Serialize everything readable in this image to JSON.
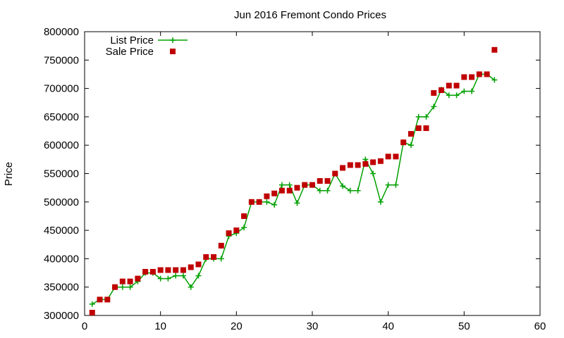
{
  "chart_data": {
    "type": "line",
    "title": "Jun 2016 Fremont Condo Prices",
    "xlabel": "",
    "ylabel": "Price",
    "xlim": [
      0,
      60
    ],
    "ylim": [
      300000,
      800000
    ],
    "x_ticks": [
      0,
      10,
      20,
      30,
      40,
      50,
      60
    ],
    "y_ticks": [
      300000,
      350000,
      400000,
      450000,
      500000,
      550000,
      600000,
      650000,
      700000,
      750000,
      800000
    ],
    "grid": false,
    "legend_position": "top-left",
    "series": [
      {
        "name": "List Price",
        "style": "line+cross",
        "color": "#00a000",
        "x": [
          1,
          2,
          3,
          4,
          5,
          6,
          7,
          8,
          9,
          10,
          11,
          12,
          13,
          14,
          15,
          16,
          17,
          18,
          19,
          20,
          21,
          22,
          23,
          24,
          25,
          26,
          27,
          28,
          29,
          30,
          31,
          32,
          33,
          34,
          35,
          36,
          37,
          38,
          39,
          40,
          41,
          42,
          43,
          44,
          45,
          46,
          47,
          48,
          49,
          50,
          51,
          52,
          53,
          54
        ],
        "y": [
          320000,
          328000,
          328000,
          350000,
          350000,
          350000,
          360000,
          375000,
          375000,
          365000,
          365000,
          370000,
          370000,
          350000,
          370000,
          400000,
          400000,
          400000,
          440000,
          445000,
          455000,
          500000,
          500000,
          500000,
          495000,
          530000,
          530000,
          498000,
          530000,
          530000,
          520000,
          520000,
          550000,
          528000,
          520000,
          520000,
          575000,
          550000,
          500000,
          530000,
          530000,
          605000,
          600000,
          650000,
          650000,
          668000,
          698000,
          688000,
          688000,
          695000,
          695000,
          725000,
          725000,
          715000
        ]
      },
      {
        "name": "Sale Price",
        "style": "square-markers",
        "color": "#c00000",
        "x": [
          1,
          2,
          3,
          4,
          5,
          6,
          7,
          8,
          9,
          10,
          11,
          12,
          13,
          14,
          15,
          16,
          17,
          18,
          19,
          20,
          21,
          22,
          23,
          24,
          25,
          26,
          27,
          28,
          29,
          30,
          31,
          32,
          33,
          34,
          35,
          36,
          37,
          38,
          39,
          40,
          41,
          42,
          43,
          44,
          45,
          46,
          47,
          48,
          49,
          50,
          51,
          52,
          53,
          54
        ],
        "y": [
          305000,
          328000,
          328000,
          350000,
          360000,
          360000,
          365000,
          377000,
          377000,
          380000,
          380000,
          380000,
          380000,
          385000,
          390000,
          403000,
          403000,
          423000,
          445000,
          450000,
          475000,
          500000,
          500000,
          510000,
          515000,
          520000,
          520000,
          525000,
          530000,
          530000,
          537000,
          537000,
          550000,
          560000,
          565000,
          565000,
          567000,
          570000,
          572000,
          580000,
          580000,
          605000,
          620000,
          630000,
          630000,
          692000,
          697000,
          705000,
          705000,
          720000,
          720000,
          725000,
          725000,
          768000
        ]
      }
    ]
  }
}
